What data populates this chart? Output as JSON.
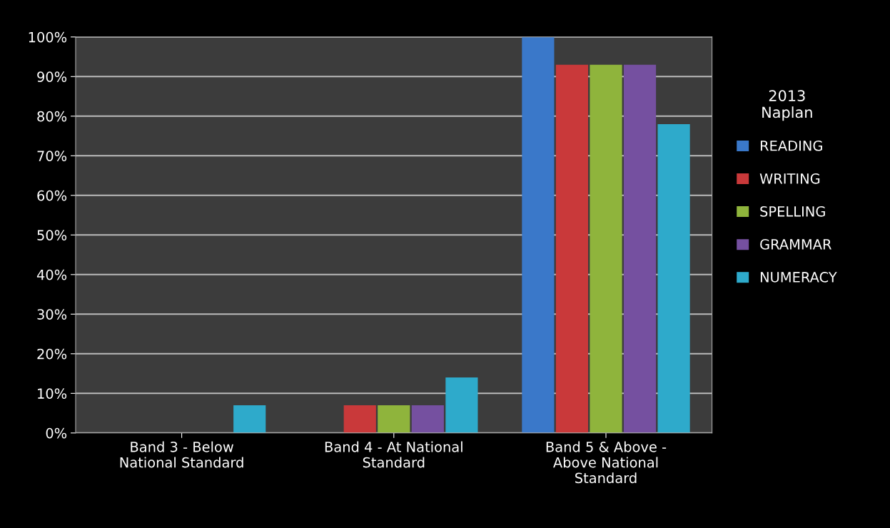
{
  "chart_data": {
    "type": "bar",
    "categories": [
      "Band 3 - Below\nNational Standard",
      "Band 4 - At National\nStandard",
      "Band 5 & Above -\nAbove National\nStandard"
    ],
    "series": [
      {
        "name": "READING",
        "color": "#3a78c9",
        "values": [
          0,
          0,
          100
        ]
      },
      {
        "name": "WRITING",
        "color": "#c9393a",
        "values": [
          0,
          7,
          93
        ]
      },
      {
        "name": "SPELLING",
        "color": "#8fb43c",
        "values": [
          0,
          7,
          93
        ]
      },
      {
        "name": "GRAMMAR",
        "color": "#7550a0",
        "values": [
          0,
          7,
          93
        ]
      },
      {
        "name": "NUMERACY",
        "color": "#2eaacb",
        "values": [
          7,
          14,
          78
        ]
      }
    ],
    "legend_title": "2013\nNaplan",
    "legend": "right",
    "ylim": [
      0,
      100
    ],
    "yticks": [
      {
        "value": 0,
        "label": "0%"
      },
      {
        "value": 10,
        "label": "10%"
      },
      {
        "value": 20,
        "label": "20%"
      },
      {
        "value": 30,
        "label": "30%"
      },
      {
        "value": 40,
        "label": "40%"
      },
      {
        "value": 50,
        "label": "50%"
      },
      {
        "value": 60,
        "label": "60%"
      },
      {
        "value": 70,
        "label": "70%"
      },
      {
        "value": 80,
        "label": "80%"
      },
      {
        "value": 90,
        "label": "90%"
      },
      {
        "value": 100,
        "label": "100%"
      }
    ],
    "grid": "y"
  }
}
